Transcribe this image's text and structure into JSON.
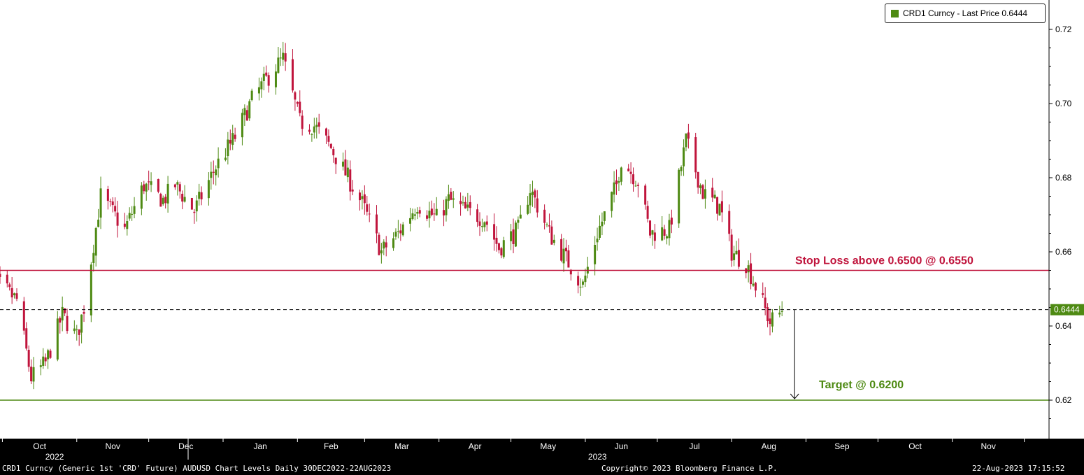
{
  "chart_data": {
    "type": "candlestick",
    "legend": "CRD1 Curncy - Last Price 0.6444",
    "last_price_label": "0.6444",
    "last_price": 0.6444,
    "ylim": [
      0.61,
      0.725
    ],
    "y_ticks": [
      0.62,
      0.64,
      0.66,
      0.68,
      0.7,
      0.72
    ],
    "y_tick_labels": [
      "0.62",
      "0.64",
      "0.66",
      "0.68",
      "0.70",
      "0.72"
    ],
    "x_months": [
      "Oct",
      "Nov",
      "Dec",
      "Jan",
      "Feb",
      "Mar",
      "Apr",
      "May",
      "Jun",
      "Jul",
      "Aug",
      "Sep",
      "Oct",
      "Nov"
    ],
    "x_years": [
      "2022",
      "2023"
    ],
    "colors": {
      "up": "#4e8a13",
      "down": "#c0143c",
      "stop_line": "#c0143c",
      "target_line": "#4e8a13"
    },
    "levels": [
      {
        "name": "stop",
        "value": 0.655,
        "label": "Stop Loss above 0.6500 @ 0.6550",
        "color": "#c0143c"
      },
      {
        "name": "target",
        "value": 0.62,
        "label": "Target @ 0.6200",
        "color": "#4e8a13"
      }
    ],
    "anchors": [
      {
        "date": "2022-09-22",
        "close": 0.67
      },
      {
        "date": "2022-09-28",
        "close": 0.652
      },
      {
        "date": "2022-10-07",
        "close": 0.647
      },
      {
        "date": "2022-10-13",
        "close": 0.626
      },
      {
        "date": "2022-10-19",
        "close": 0.63
      },
      {
        "date": "2022-10-26",
        "close": 0.643
      },
      {
        "date": "2022-11-01",
        "close": 0.637
      },
      {
        "date": "2022-11-04",
        "close": 0.645
      },
      {
        "date": "2022-11-11",
        "close": 0.675
      },
      {
        "date": "2022-11-21",
        "close": 0.666
      },
      {
        "date": "2022-11-29",
        "close": 0.678
      },
      {
        "date": "2022-12-07",
        "close": 0.674
      },
      {
        "date": "2022-12-12",
        "close": 0.678
      },
      {
        "date": "2022-12-20",
        "close": 0.671
      },
      {
        "date": "2022-12-29",
        "close": 0.683
      },
      {
        "date": "2023-01-06",
        "close": 0.691
      },
      {
        "date": "2023-01-13",
        "close": 0.701
      },
      {
        "date": "2023-01-23",
        "close": 0.71
      },
      {
        "date": "2023-01-26",
        "close": 0.712
      },
      {
        "date": "2023-02-02",
        "close": 0.695
      },
      {
        "date": "2023-02-08",
        "close": 0.694
      },
      {
        "date": "2023-02-15",
        "close": 0.688
      },
      {
        "date": "2023-02-22",
        "close": 0.68
      },
      {
        "date": "2023-02-28",
        "close": 0.673
      },
      {
        "date": "2023-03-08",
        "close": 0.66
      },
      {
        "date": "2023-03-15",
        "close": 0.665
      },
      {
        "date": "2023-03-23",
        "close": 0.673
      },
      {
        "date": "2023-03-31",
        "close": 0.669
      },
      {
        "date": "2023-04-05",
        "close": 0.674
      },
      {
        "date": "2023-04-12",
        "close": 0.671
      },
      {
        "date": "2023-04-20",
        "close": 0.669
      },
      {
        "date": "2023-04-26",
        "close": 0.661
      },
      {
        "date": "2023-05-04",
        "close": 0.666
      },
      {
        "date": "2023-05-09",
        "close": 0.677
      },
      {
        "date": "2023-05-17",
        "close": 0.665
      },
      {
        "date": "2023-05-24",
        "close": 0.658
      },
      {
        "date": "2023-05-31",
        "close": 0.651
      },
      {
        "date": "2023-06-06",
        "close": 0.665
      },
      {
        "date": "2023-06-14",
        "close": 0.678
      },
      {
        "date": "2023-06-16",
        "close": 0.685
      },
      {
        "date": "2023-06-23",
        "close": 0.679
      },
      {
        "date": "2023-06-28",
        "close": 0.665
      },
      {
        "date": "2023-07-06",
        "close": 0.666
      },
      {
        "date": "2023-07-13",
        "close": 0.69
      },
      {
        "date": "2023-07-20",
        "close": 0.676
      },
      {
        "date": "2023-07-27",
        "close": 0.672
      },
      {
        "date": "2023-08-01",
        "close": 0.66
      },
      {
        "date": "2023-08-07",
        "close": 0.657
      },
      {
        "date": "2023-08-14",
        "close": 0.646
      },
      {
        "date": "2023-08-17",
        "close": 0.641
      },
      {
        "date": "2023-08-22",
        "close": 0.644
      }
    ]
  },
  "footer": {
    "left": "CRD1 Curncy (Generic 1st 'CRD' Future) AUDUSD Chart Levels  Daily 30DEC2022-22AUG2023",
    "center": "Copyright© 2023 Bloomberg Finance L.P.",
    "right": "22-Aug-2023 17:15:52"
  }
}
